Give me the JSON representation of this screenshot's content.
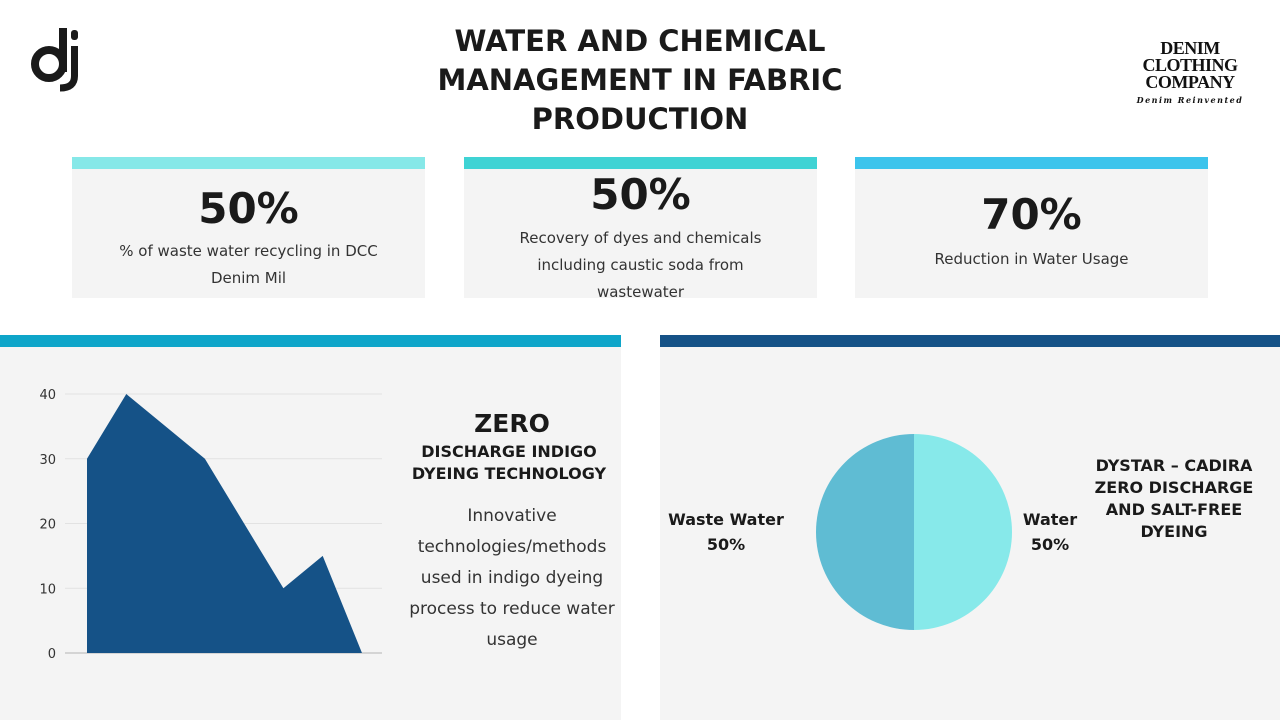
{
  "header": {
    "title": "WATER AND CHEMICAL MANAGEMENT IN FABRIC PRODUCTION",
    "logo_icon": "dj-monogram-icon",
    "brand": {
      "line1": "DENIM",
      "line2": "CLOTHING",
      "line3": "COMPANY",
      "tagline": "Denim Reinvented"
    }
  },
  "stats": [
    {
      "value": "50%",
      "label": "% of waste water recycling in DCC Denim Mil",
      "color": "#86e8e8"
    },
    {
      "value": "50%",
      "label": "Recovery of dyes and chemicals including caustic soda from wastewater",
      "color": "#3fd3d4"
    },
    {
      "value": "70%",
      "label": "Reduction in Water Usage",
      "color": "#3cc4ec"
    }
  ],
  "left_panel": {
    "accent": "#0ea5c9",
    "heading": "ZERO",
    "subheading": "DISCHARGE INDIGO DYEING TECHNOLOGY",
    "description": "Innovative technologies/methods used in indigo dyeing process to reduce water usage"
  },
  "right_panel": {
    "accent": "#155287",
    "title": "DYSTAR – CADIRA ZERO DISCHARGE AND SALT-FREE DYEING",
    "left_label": "Waste Water",
    "left_pct": "50%",
    "right_label": "Water",
    "right_pct": "50%"
  },
  "chart_data": [
    {
      "type": "area",
      "x": [
        1,
        2,
        3,
        4,
        5,
        6,
        7,
        8
      ],
      "values": [
        30,
        40,
        35,
        30,
        20,
        10,
        15,
        0
      ],
      "yticks": [
        "0",
        "10",
        "20",
        "30",
        "40"
      ],
      "ylim": [
        0,
        40
      ],
      "grid": true,
      "color": "#155287"
    },
    {
      "type": "pie",
      "slices": [
        {
          "label": "Waste Water",
          "value": 50,
          "color": "#5fbcd3"
        },
        {
          "label": "Water",
          "value": 50,
          "color": "#87e9ea"
        }
      ]
    }
  ]
}
